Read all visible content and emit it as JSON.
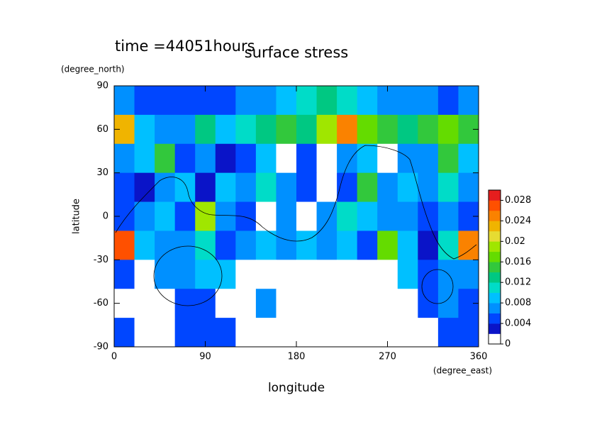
{
  "chart_data": {
    "type": "contour",
    "title": "surface stress",
    "subtitle": "time =44051hours",
    "xlabel": "longitude",
    "xunit": "(degree_east)",
    "ylabel": "latitude",
    "yunit": "(degree_north)",
    "x": [
      10,
      30,
      50,
      70,
      90,
      110,
      130,
      150,
      170,
      190,
      210,
      230,
      250,
      270,
      290,
      310,
      330,
      350
    ],
    "y": [
      80,
      60,
      40,
      20,
      0,
      -20,
      -40,
      -60,
      -80
    ],
    "z": [
      [
        0.006,
        0.005,
        0.004,
        0.004,
        0.004,
        0.005,
        0.006,
        0.006,
        0.008,
        0.01,
        0.012,
        0.01,
        0.008,
        0.006,
        0.006,
        0.006,
        0.005,
        0.006
      ],
      [
        0.022,
        0.008,
        0.006,
        0.006,
        0.012,
        0.008,
        0.01,
        0.012,
        0.014,
        0.012,
        0.018,
        0.024,
        0.016,
        0.014,
        0.012,
        0.014,
        0.016,
        0.014
      ],
      [
        0.006,
        0.008,
        0.014,
        0.004,
        0.006,
        0.002,
        0.004,
        0.008,
        0.001,
        0.004,
        0.001,
        0.006,
        0.008,
        0.001,
        0.006,
        0.006,
        0.014,
        0.008
      ],
      [
        0.004,
        0.002,
        0.006,
        0.008,
        0.002,
        0.008,
        0.006,
        0.01,
        0.006,
        0.004,
        0.001,
        0.004,
        0.014,
        0.006,
        0.008,
        0.006,
        0.01,
        0.006
      ],
      [
        0.004,
        0.006,
        0.008,
        0.004,
        0.018,
        0.006,
        0.004,
        0.001,
        0.006,
        0.001,
        0.006,
        0.01,
        0.008,
        0.006,
        0.006,
        0.004,
        0.006,
        0.004
      ],
      [
        0.026,
        0.008,
        0.006,
        0.006,
        0.01,
        0.004,
        0.006,
        0.008,
        0.006,
        0.008,
        0.006,
        0.008,
        0.004,
        0.016,
        0.008,
        0.002,
        0.01,
        0.024
      ],
      [
        0.004,
        0.001,
        0.006,
        0.006,
        0.008,
        0.008,
        0.001,
        0.001,
        0.001,
        0.001,
        0.001,
        0.001,
        0.001,
        0.001,
        0.008,
        0.004,
        0.006,
        0.006
      ],
      [
        0.001,
        0.001,
        0.001,
        0.004,
        0.004,
        0.001,
        0.001,
        0.006,
        0.001,
        0.001,
        0.001,
        0.001,
        0.001,
        0.001,
        0.001,
        0.004,
        0.006,
        0.004
      ],
      [
        0.004,
        0.001,
        0.001,
        0.004,
        0.004,
        0.004,
        0.001,
        0.001,
        0.001,
        0.001,
        0.001,
        0.001,
        0.001,
        0.001,
        0.001,
        0.001,
        0.004,
        0.004
      ]
    ],
    "xlim": [
      0,
      360
    ],
    "xticks": [
      0,
      90,
      180,
      270,
      360
    ],
    "ylim": [
      -90,
      90
    ],
    "yticks": [
      -90,
      -60,
      -30,
      0,
      30,
      60,
      90
    ],
    "clim": [
      0,
      0.03
    ],
    "cticks": [
      0,
      0.004,
      0.008,
      0.012,
      0.016,
      0.02,
      0.024,
      0.028
    ],
    "colors": [
      "#ffffff",
      "#0a14c8",
      "#0046ff",
      "#0090ff",
      "#00c0ff",
      "#00dcc8",
      "#00c882",
      "#32c83c",
      "#64dc00",
      "#a0e600",
      "#e6dc32",
      "#f0b400",
      "#fa8200",
      "#ff5000",
      "#e61e1e"
    ]
  }
}
